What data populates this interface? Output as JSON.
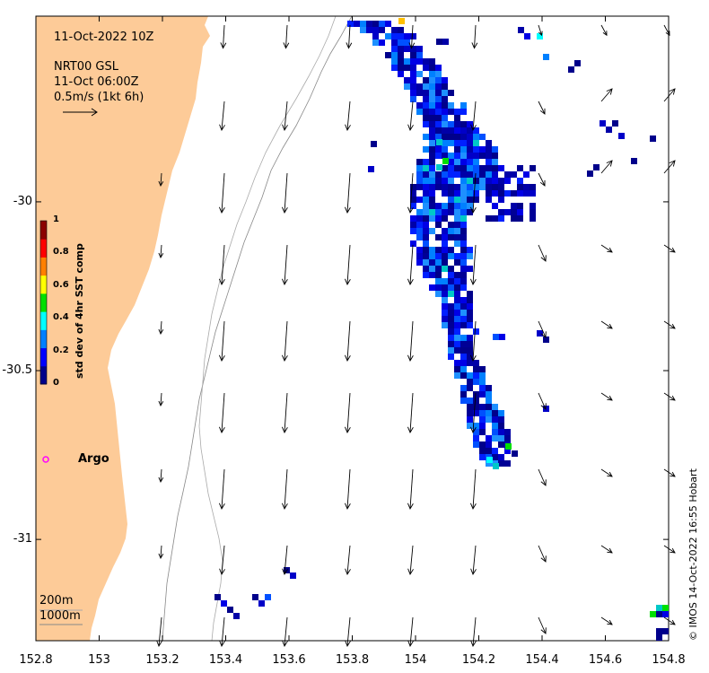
{
  "info": {
    "datetime": "11-Oct-2022 10Z",
    "product": "NRT00 GSL",
    "product_time": "11-Oct 06:00Z",
    "scale_label": "0.5m/s (1kt 6h)"
  },
  "colorbar": {
    "title": "std dev of 4hr SST comp",
    "ticks": [
      "0",
      "0.2",
      "0.4",
      "0.6",
      "0.8",
      "1"
    ],
    "colors": [
      "#00008b",
      "#0000ff",
      "#0080ff",
      "#00ffff",
      "#00e000",
      "#ffff00",
      "#ff8000",
      "#ff0000",
      "#8b0000"
    ]
  },
  "argo": {
    "label": "Argo",
    "marker_color": "#ff00ff"
  },
  "depth_legend": {
    "contour_1": "200m",
    "contour_2": "1000m"
  },
  "credit": "© IMOS 14-Oct-2022 16:55 Hobart",
  "axes": {
    "x_ticks": [
      "152.8",
      "153",
      "153.2",
      "153.4",
      "153.6",
      "153.8",
      "154",
      "154.2",
      "154.4",
      "154.6",
      "154.8"
    ],
    "y_ticks": [
      "-30",
      "-30.5",
      "-31"
    ],
    "lon_range": [
      152.8,
      154.8
    ],
    "lat_range": [
      -31.3,
      -29.45
    ]
  },
  "colors": {
    "land": "#fdcb98",
    "frame": "#000000",
    "contour": "#888888",
    "arrow": "#000000"
  }
}
